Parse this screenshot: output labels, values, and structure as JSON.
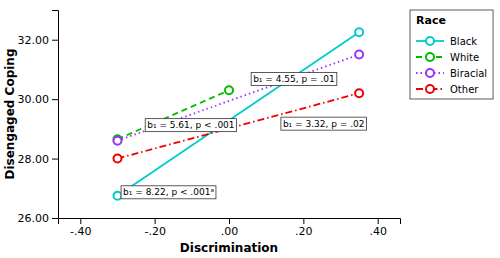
{
  "chart_data": {
    "type": "line",
    "xlabel": "Discrimination",
    "ylabel": "Disengaged Coping",
    "xlim": [
      -0.46,
      0.46
    ],
    "ylim": [
      26.0,
      33.0
    ],
    "xticks": [
      {
        "value": -0.4,
        "label": "-.40"
      },
      {
        "value": -0.2,
        "label": "-.20"
      },
      {
        "value": 0.0,
        "label": ".00"
      },
      {
        "value": 0.2,
        "label": ".20"
      },
      {
        "value": 0.4,
        "label": ".40"
      }
    ],
    "yticks": [
      {
        "value": 26.0,
        "label": "26.00"
      },
      {
        "value": 28.0,
        "label": "28.00"
      },
      {
        "value": 30.0,
        "label": "30.00"
      },
      {
        "value": 32.0,
        "label": "32.00"
      }
    ],
    "marker": "circle",
    "grid": false,
    "legend": "upper right",
    "legend_title": "Race",
    "series": [
      {
        "name": "Black",
        "color": "#00CCCC",
        "line_style": "solid",
        "x": [
          -0.3,
          0.35
        ],
        "values": [
          26.75,
          32.25
        ]
      },
      {
        "name": "White",
        "color": "#00BB00",
        "line_style": "dashed",
        "x": [
          -0.3,
          0.0
        ],
        "values": [
          28.65,
          30.3
        ]
      },
      {
        "name": "Biracial",
        "color": "#9933FF",
        "line_style": "dotted",
        "x": [
          -0.3,
          0.35
        ],
        "values": [
          28.6,
          31.5
        ]
      },
      {
        "name": "Other",
        "color": "#EE0000",
        "line_style": "dashdot",
        "x": [
          -0.3,
          0.35
        ],
        "values": [
          28.0,
          30.2
        ]
      }
    ],
    "annotations": [
      {
        "text": "b₁ = 8.22, p < .001ᵃ",
        "x": -0.285,
        "y": 26.87
      },
      {
        "text": "b₁ = 5.61, p < .001",
        "x": -0.22,
        "y": 29.13
      },
      {
        "text": "b₁ = 4.55, p = .01",
        "x": 0.065,
        "y": 30.68
      },
      {
        "text": "b₁ = 3.32, p = .02",
        "x": 0.145,
        "y": 29.18
      }
    ]
  }
}
